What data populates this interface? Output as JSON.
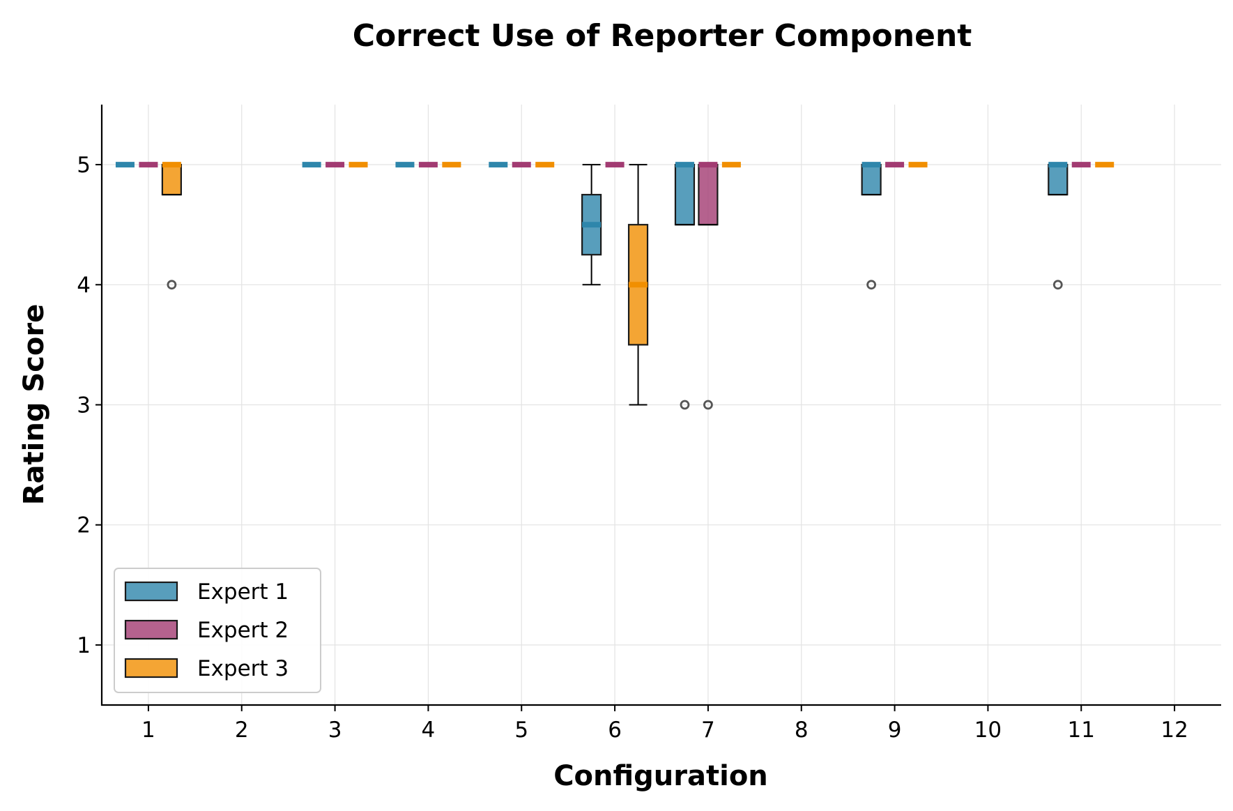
{
  "chart_data": {
    "type": "box",
    "title": "Correct Use of Reporter Component",
    "xlabel": "Configuration",
    "ylabel": "Rating Score",
    "categories": [
      "1",
      "2",
      "3",
      "4",
      "5",
      "6",
      "7",
      "8",
      "9",
      "10",
      "11",
      "12"
    ],
    "yticks": [
      "1",
      "2",
      "3",
      "4",
      "5"
    ],
    "ylim": [
      0.5,
      5.5
    ],
    "grid": true,
    "legend_position": "lower-left",
    "series": [
      {
        "name": "Expert 1",
        "color": "#2e86ab",
        "boxes": [
          {
            "config": 1,
            "q1": 5,
            "median": 5,
            "q3": 5,
            "whisker_low": 5,
            "whisker_high": 5,
            "outliers": []
          },
          {
            "config": 3,
            "q1": 5,
            "median": 5,
            "q3": 5,
            "whisker_low": 5,
            "whisker_high": 5,
            "outliers": []
          },
          {
            "config": 4,
            "q1": 5,
            "median": 5,
            "q3": 5,
            "whisker_low": 5,
            "whisker_high": 5,
            "outliers": []
          },
          {
            "config": 5,
            "q1": 5,
            "median": 5,
            "q3": 5,
            "whisker_low": 5,
            "whisker_high": 5,
            "outliers": []
          },
          {
            "config": 6,
            "q1": 4.25,
            "median": 4.5,
            "q3": 4.75,
            "whisker_low": 4,
            "whisker_high": 5,
            "outliers": []
          },
          {
            "config": 7,
            "q1": 4.5,
            "median": 5,
            "q3": 5,
            "whisker_low": 4.5,
            "whisker_high": 5,
            "outliers": [
              3
            ]
          },
          {
            "config": 9,
            "q1": 4.75,
            "median": 5,
            "q3": 5,
            "whisker_low": 4.75,
            "whisker_high": 5,
            "outliers": [
              4
            ]
          },
          {
            "config": 11,
            "q1": 4.75,
            "median": 5,
            "q3": 5,
            "whisker_low": 4.75,
            "whisker_high": 5,
            "outliers": [
              4
            ]
          }
        ]
      },
      {
        "name": "Expert 2",
        "color": "#a23b72",
        "boxes": [
          {
            "config": 1,
            "q1": 5,
            "median": 5,
            "q3": 5,
            "whisker_low": 5,
            "whisker_high": 5,
            "outliers": []
          },
          {
            "config": 3,
            "q1": 5,
            "median": 5,
            "q3": 5,
            "whisker_low": 5,
            "whisker_high": 5,
            "outliers": []
          },
          {
            "config": 4,
            "q1": 5,
            "median": 5,
            "q3": 5,
            "whisker_low": 5,
            "whisker_high": 5,
            "outliers": []
          },
          {
            "config": 5,
            "q1": 5,
            "median": 5,
            "q3": 5,
            "whisker_low": 5,
            "whisker_high": 5,
            "outliers": []
          },
          {
            "config": 6,
            "q1": 5,
            "median": 5,
            "q3": 5,
            "whisker_low": 5,
            "whisker_high": 5,
            "outliers": []
          },
          {
            "config": 7,
            "q1": 4.5,
            "median": 5,
            "q3": 5,
            "whisker_low": 4.5,
            "whisker_high": 5,
            "outliers": [
              3
            ]
          },
          {
            "config": 9,
            "q1": 5,
            "median": 5,
            "q3": 5,
            "whisker_low": 5,
            "whisker_high": 5,
            "outliers": []
          },
          {
            "config": 11,
            "q1": 5,
            "median": 5,
            "q3": 5,
            "whisker_low": 5,
            "whisker_high": 5,
            "outliers": []
          }
        ]
      },
      {
        "name": "Expert 3",
        "color": "#f18f01",
        "boxes": [
          {
            "config": 1,
            "q1": 4.75,
            "median": 5,
            "q3": 5,
            "whisker_low": 4.75,
            "whisker_high": 5,
            "outliers": [
              4
            ]
          },
          {
            "config": 3,
            "q1": 5,
            "median": 5,
            "q3": 5,
            "whisker_low": 5,
            "whisker_high": 5,
            "outliers": []
          },
          {
            "config": 4,
            "q1": 5,
            "median": 5,
            "q3": 5,
            "whisker_low": 5,
            "whisker_high": 5,
            "outliers": []
          },
          {
            "config": 5,
            "q1": 5,
            "median": 5,
            "q3": 5,
            "whisker_low": 5,
            "whisker_high": 5,
            "outliers": []
          },
          {
            "config": 6,
            "q1": 3.5,
            "median": 4,
            "q3": 4.5,
            "whisker_low": 3,
            "whisker_high": 5,
            "outliers": []
          },
          {
            "config": 7,
            "q1": 5,
            "median": 5,
            "q3": 5,
            "whisker_low": 5,
            "whisker_high": 5,
            "outliers": []
          },
          {
            "config": 9,
            "q1": 5,
            "median": 5,
            "q3": 5,
            "whisker_low": 5,
            "whisker_high": 5,
            "outliers": []
          },
          {
            "config": 11,
            "q1": 5,
            "median": 5,
            "q3": 5,
            "whisker_low": 5,
            "whisker_high": 5,
            "outliers": []
          }
        ]
      }
    ]
  }
}
